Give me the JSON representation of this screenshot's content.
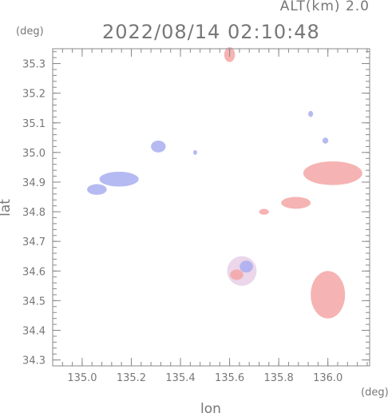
{
  "header": {
    "alt_label": "ALT(km) 2.0",
    "datetime": "2022/08/14 02:10:48"
  },
  "chart_data": {
    "type": "heatmap",
    "title": "2022/08/14 02:10:48",
    "xlabel": "lon",
    "ylabel": "lat",
    "x_unit": "(deg)",
    "y_unit": "(deg)",
    "xlim": [
      134.88,
      136.17
    ],
    "ylim": [
      34.28,
      35.35
    ],
    "x_ticks": [
      135.0,
      135.2,
      135.4,
      135.6,
      135.8,
      136.0
    ],
    "x_tick_labels": [
      "135.0",
      "135.2",
      "135.4",
      "135.6",
      "135.8",
      "136.0"
    ],
    "y_ticks": [
      34.3,
      34.4,
      34.5,
      34.6,
      34.7,
      34.8,
      34.9,
      35.0,
      35.1,
      35.2,
      35.3
    ],
    "y_tick_labels": [
      "34.3",
      "34.4",
      "34.5",
      "34.6",
      "34.7",
      "34.8",
      "34.9",
      "35.0",
      "35.1",
      "35.2",
      "35.3"
    ],
    "grid": false,
    "colors": {
      "positive": "#f4a6a6",
      "negative": "#a9aef0",
      "axis": "#888888"
    },
    "echo_areas": [
      {
        "name": "west-band",
        "lon": 135.15,
        "lat": 34.91,
        "rlon": 0.08,
        "rlat": 0.025,
        "sign": "negative"
      },
      {
        "name": "west-band-lower",
        "lon": 135.06,
        "lat": 34.875,
        "rlon": 0.04,
        "rlat": 0.018,
        "sign": "negative"
      },
      {
        "name": "north-patch",
        "lon": 135.6,
        "lat": 35.33,
        "rlon": 0.022,
        "rlat": 0.025,
        "sign": "positive"
      },
      {
        "name": "east-band",
        "lon": 136.02,
        "lat": 34.93,
        "rlon": 0.12,
        "rlat": 0.04,
        "sign": "positive"
      },
      {
        "name": "east-band-lower",
        "lon": 135.87,
        "lat": 34.83,
        "rlon": 0.06,
        "rlat": 0.02,
        "sign": "positive"
      },
      {
        "name": "central-cluster",
        "lon": 135.65,
        "lat": 34.6,
        "rlon": 0.06,
        "rlat": 0.05,
        "sign": "mixed"
      },
      {
        "name": "southeast-patch",
        "lon": 136.0,
        "lat": 34.52,
        "rlon": 0.07,
        "rlat": 0.08,
        "sign": "positive"
      },
      {
        "name": "small-ne-dot",
        "lon": 135.93,
        "lat": 35.13,
        "rlon": 0.01,
        "rlat": 0.01,
        "sign": "negative"
      },
      {
        "name": "small-ne-dot2",
        "lon": 135.99,
        "lat": 35.04,
        "rlon": 0.012,
        "rlat": 0.01,
        "sign": "negative"
      },
      {
        "name": "small-mid-dot",
        "lon": 135.74,
        "lat": 34.8,
        "rlon": 0.02,
        "rlat": 0.01,
        "sign": "positive"
      },
      {
        "name": "small-north-dots",
        "lon": 135.31,
        "lat": 35.02,
        "rlon": 0.03,
        "rlat": 0.02,
        "sign": "negative"
      },
      {
        "name": "small-dot-center",
        "lon": 135.46,
        "lat": 35.0,
        "rlon": 0.008,
        "rlat": 0.008,
        "sign": "negative"
      }
    ]
  }
}
